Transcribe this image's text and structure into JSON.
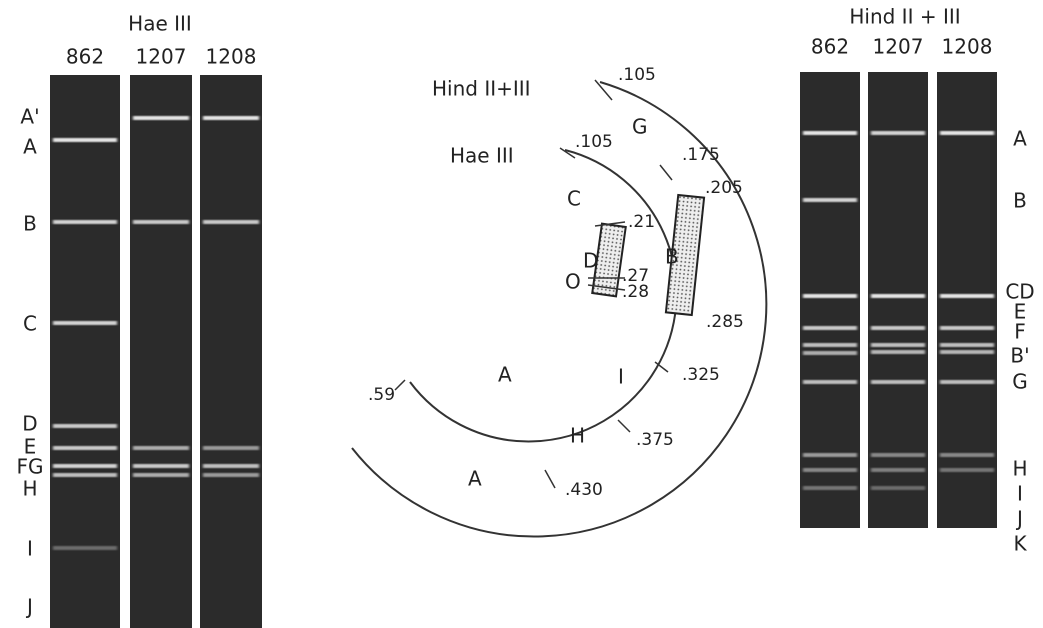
{
  "left_gel": {
    "title": "Hae III",
    "lanes": [
      "862",
      "1207",
      "1208"
    ],
    "band_labels": [
      "A'",
      "A",
      "B",
      "C",
      "D",
      "E",
      "FG",
      "H",
      "I",
      "J"
    ]
  },
  "map": {
    "outer_enzyme": "Hind II+III",
    "inner_enzyme": "Hae III",
    "outer_positions": [
      ".105",
      ".175",
      ".205",
      ".285",
      ".325",
      ".375",
      ".430"
    ],
    "outer_fragments": [
      "G",
      "B",
      "I",
      "H",
      "A"
    ],
    "inner_positions": [
      ".105",
      ".21",
      ".27",
      ".28",
      ".59"
    ],
    "inner_fragments": [
      "C",
      "D",
      "O",
      "A"
    ]
  },
  "right_gel": {
    "title": "Hind II + III",
    "lanes": [
      "862",
      "1207",
      "1208"
    ],
    "band_labels": [
      "A",
      "B",
      "CD",
      "E",
      "F",
      "B'",
      "G",
      "H",
      "I",
      "J",
      "K"
    ]
  }
}
